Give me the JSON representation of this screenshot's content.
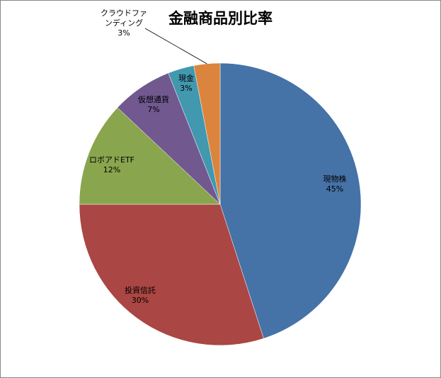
{
  "chart_data": {
    "type": "pie",
    "title": "金融商品別比率",
    "start_angle_deg": 0,
    "direction": "clockwise",
    "slices": [
      {
        "label": "現物株",
        "value": 45,
        "percent_label": "45%",
        "color": "#4572A7"
      },
      {
        "label": "投資信託",
        "value": 30,
        "percent_label": "30%",
        "color": "#AA4643"
      },
      {
        "label": "ロボアドETF",
        "value": 12,
        "percent_label": "12%",
        "color": "#89A54E"
      },
      {
        "label": "仮想通貨",
        "value": 7,
        "percent_label": "7%",
        "color": "#71588F"
      },
      {
        "label": "現金",
        "value": 3,
        "percent_label": "3%",
        "color": "#4198AF"
      },
      {
        "label_lines": [
          "クラウドファ",
          "ンディング"
        ],
        "label": "クラウドファンディング",
        "value": 3,
        "percent_label": "3%",
        "color": "#DB843D",
        "leader_line": true
      }
    ]
  }
}
